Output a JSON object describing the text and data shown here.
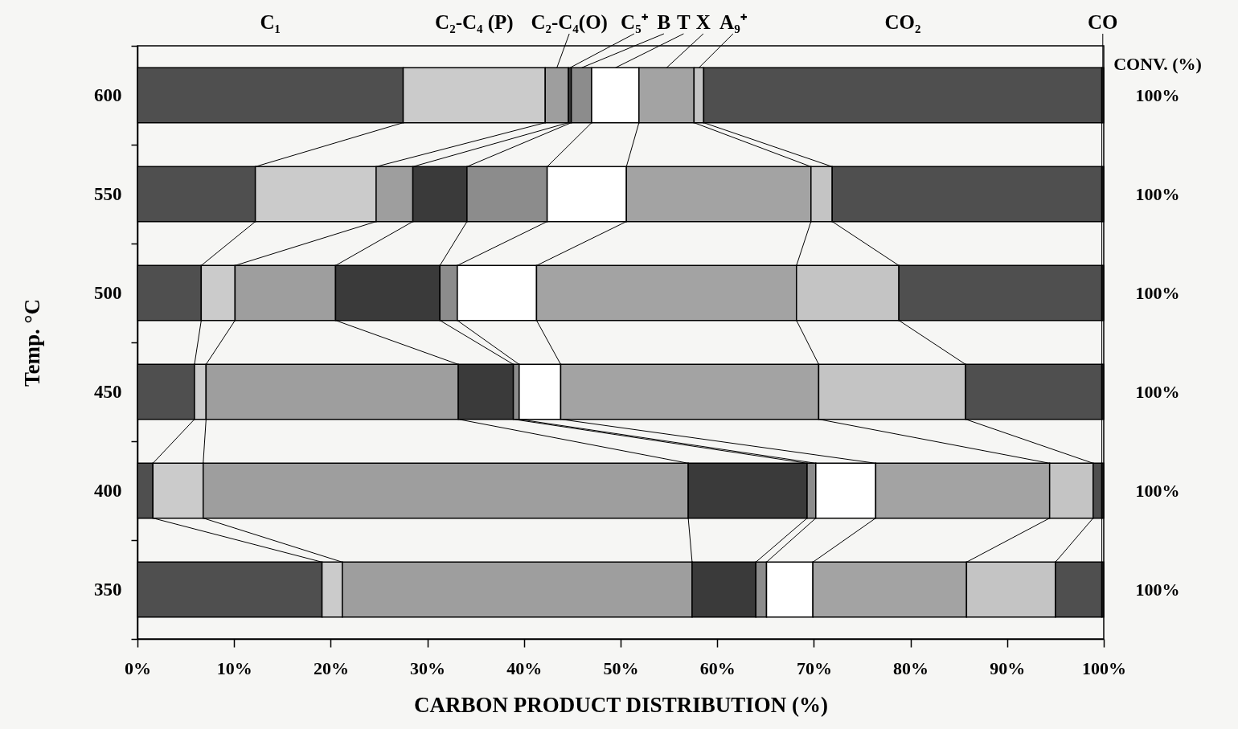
{
  "chart_data": {
    "type": "bar",
    "orientation": "horizontal",
    "stacked": true,
    "categories": [
      "600",
      "550",
      "500",
      "450",
      "400",
      "350"
    ],
    "y2_categories": [
      "100%",
      "100%",
      "100%",
      "100%",
      "100%",
      "100%"
    ],
    "xlabel": "CARBON PRODUCT DISTRIBUTION (%)",
    "ylabel": "Temp. °C",
    "y2label": "CONV. (%)",
    "xlim": [
      0,
      100
    ],
    "xticks": [
      {
        "value": 0,
        "label": "0%"
      },
      {
        "value": 10,
        "label": "10%"
      },
      {
        "value": 20,
        "label": "20%"
      },
      {
        "value": 30,
        "label": "30%"
      },
      {
        "value": 40,
        "label": "40%"
      },
      {
        "value": 50,
        "label": "50%"
      },
      {
        "value": 60,
        "label": "60%"
      },
      {
        "value": 70,
        "label": "70%"
      },
      {
        "value": 80,
        "label": "80%"
      },
      {
        "value": 90,
        "label": "90%"
      },
      {
        "value": 100,
        "label": "100%"
      }
    ],
    "grid": false,
    "series": [
      {
        "name": "C₁",
        "color": "#4f4f4f",
        "values": [
          27.5,
          12.2,
          6.6,
          5.9,
          1.6,
          19.1
        ]
      },
      {
        "name": "C₂-C₄ (P)",
        "color": "#cbcbcb",
        "values": [
          14.7,
          12.5,
          3.5,
          1.2,
          5.2,
          2.1
        ]
      },
      {
        "name": "C₂-C₄(O)",
        "color": "#9e9e9e",
        "values": [
          2.4,
          3.8,
          10.4,
          26.1,
          50.2,
          36.2
        ]
      },
      {
        "name": "C₅⁺",
        "color": "#3a3a3a",
        "values": [
          0.3,
          5.6,
          10.8,
          5.7,
          12.3,
          6.6
        ]
      },
      {
        "name": "B",
        "color": "#8c8c8c",
        "values": [
          2.1,
          8.3,
          1.8,
          0.6,
          0.9,
          1.1
        ]
      },
      {
        "name": "T",
        "color": "#ffffff",
        "values": [
          4.9,
          8.2,
          8.2,
          4.3,
          6.2,
          4.8
        ]
      },
      {
        "name": "X",
        "color": "#a3a3a3",
        "values": [
          5.7,
          19.1,
          26.9,
          26.7,
          18.0,
          15.9
        ]
      },
      {
        "name": "A₉⁺",
        "color": "#c4c4c4",
        "values": [
          1.0,
          2.2,
          10.6,
          15.2,
          4.5,
          9.2
        ]
      },
      {
        "name": "CO₂",
        "color": "#4f4f4f",
        "values": [
          41.2,
          27.9,
          21.0,
          14.1,
          0.9,
          4.8
        ]
      },
      {
        "name": "CO",
        "color": "#1c1c1c",
        "values": [
          0.2,
          0.2,
          0.2,
          0.2,
          0.2,
          0.2
        ]
      }
    ]
  }
}
